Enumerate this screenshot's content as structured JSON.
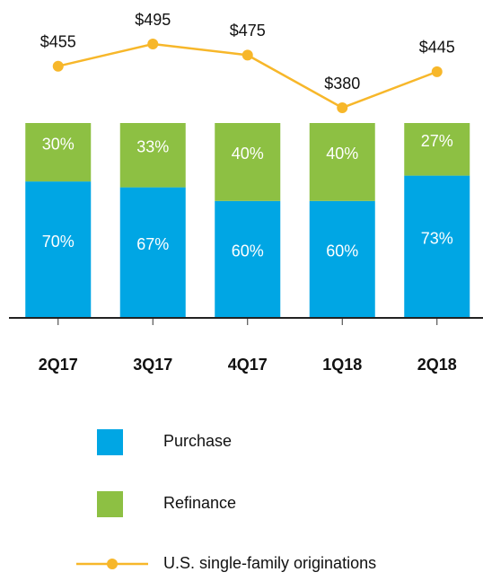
{
  "chart_data": {
    "type": "bar",
    "stacked": true,
    "categories": [
      "2Q17",
      "3Q17",
      "4Q17",
      "1Q18",
      "2Q18"
    ],
    "series": [
      {
        "name": "Purchase",
        "color": "#00a6e4",
        "values": [
          70,
          67,
          60,
          60,
          73
        ],
        "value_labels": [
          "70%",
          "67%",
          "60%",
          "60%",
          "73%"
        ]
      },
      {
        "name": "Refinance",
        "color": "#8dc043",
        "values": [
          30,
          33,
          40,
          40,
          27
        ],
        "value_labels": [
          "30%",
          "33%",
          "40%",
          "40%",
          "27%"
        ]
      },
      {
        "name": "U.S. single-family originations",
        "type": "line",
        "color": "#f7b72a",
        "values": [
          455,
          495,
          475,
          380,
          445
        ],
        "value_labels": [
          "$455",
          "$495",
          "$475",
          "$380",
          "$445"
        ]
      }
    ]
  }
}
